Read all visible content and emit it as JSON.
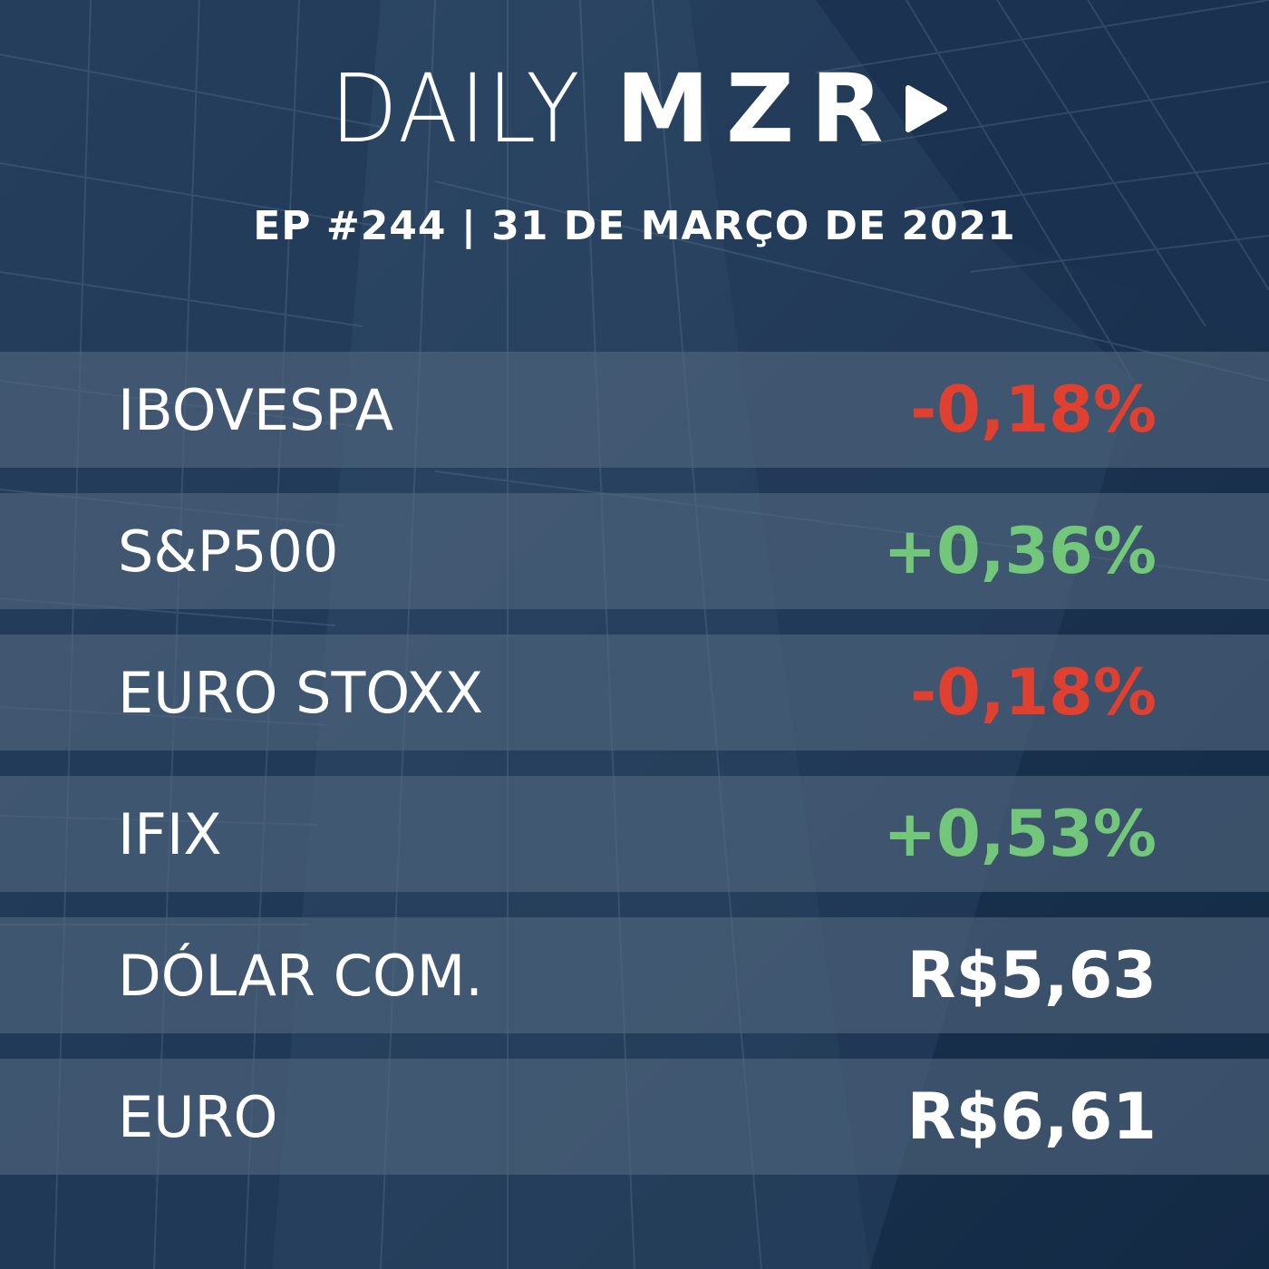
{
  "brand": {
    "daily": "DAILY",
    "mzr": "MZR",
    "play_icon": "play-icon"
  },
  "episode": {
    "text": "EP #244 | 31 DE MARÇO DE 2021"
  },
  "rows": [
    {
      "label": "IBOVESPA",
      "value": "-0,18%",
      "tone": "negative"
    },
    {
      "label": "S&P500",
      "value": "+0,36%",
      "tone": "positive"
    },
    {
      "label": "EURO STOXX",
      "value": "-0,18%",
      "tone": "negative"
    },
    {
      "label": "IFIX",
      "value": "+0,53%",
      "tone": "positive"
    },
    {
      "label": "DÓLAR COM.",
      "value": "R$5,63",
      "tone": "neutral"
    },
    {
      "label": "EURO",
      "value": "R$6,61",
      "tone": "neutral"
    }
  ],
  "colors": {
    "negative": "#e0402f",
    "positive": "#72c77a",
    "neutral": "#ffffff",
    "background": "#17304d"
  }
}
